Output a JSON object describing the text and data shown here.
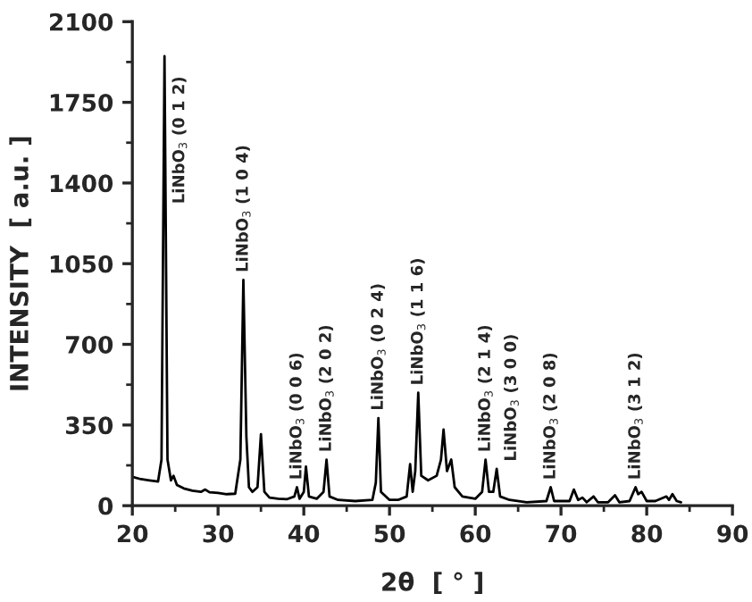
{
  "chart_data": {
    "type": "line",
    "xlabel": "2θ  [ ° ]",
    "ylabel": "INTENSITY  [ a.u. ]",
    "color": "#000000",
    "line_style": "solid",
    "x": [
      20,
      21,
      22,
      23,
      23.4,
      23.6,
      23.75,
      23.9,
      24.1,
      24.5,
      24.8,
      25.2,
      26,
      27,
      28,
      28.5,
      29,
      30,
      31,
      32,
      32.6,
      32.95,
      33.3,
      33.6,
      34,
      34.6,
      35.0,
      35.4,
      36,
      37,
      38,
      38.9,
      39.2,
      39.5,
      40.0,
      40.25,
      40.6,
      41.5,
      42.3,
      42.65,
      43,
      44,
      46,
      48,
      48.4,
      48.7,
      49,
      50,
      51,
      52,
      52.4,
      52.7,
      53.0,
      53.35,
      53.7,
      54.5,
      55.5,
      56.0,
      56.3,
      56.7,
      57.2,
      57.6,
      58.5,
      60,
      60.8,
      61.2,
      61.6,
      62.1,
      62.5,
      62.9,
      64,
      66,
      68.3,
      68.8,
      69.2,
      71,
      71.5,
      72,
      72.5,
      73,
      73.8,
      74.3,
      75.5,
      76.3,
      76.8,
      78,
      78.7,
      79.0,
      79.4,
      80,
      81,
      82.3,
      82.6,
      83.0,
      83.5,
      84
    ],
    "values": [
      125,
      115,
      110,
      105,
      200,
      1200,
      1950,
      1200,
      200,
      110,
      130,
      90,
      75,
      65,
      60,
      70,
      58,
      55,
      50,
      52,
      200,
      980,
      300,
      80,
      60,
      80,
      310,
      60,
      35,
      30,
      28,
      40,
      80,
      30,
      60,
      170,
      40,
      30,
      60,
      200,
      40,
      25,
      20,
      25,
      100,
      380,
      60,
      25,
      25,
      40,
      180,
      60,
      150,
      490,
      130,
      110,
      130,
      200,
      330,
      150,
      200,
      80,
      40,
      30,
      60,
      200,
      60,
      60,
      160,
      40,
      25,
      15,
      20,
      80,
      20,
      20,
      70,
      25,
      35,
      15,
      40,
      15,
      15,
      45,
      15,
      20,
      80,
      50,
      60,
      20,
      20,
      40,
      25,
      50,
      20,
      15
    ],
    "xlim": [
      20,
      90
    ],
    "ylim": [
      0,
      2100
    ],
    "xticks": [
      20,
      30,
      40,
      50,
      60,
      70,
      80,
      90
    ],
    "yticks": [
      0,
      350,
      700,
      1050,
      1400,
      1750,
      2100
    ],
    "annotations": [
      {
        "text": "LiNbO$_{3}$ (0 1 2)",
        "x": 23.75,
        "y": 1950
      },
      {
        "text": "LiNbO$_{3}$ (1 0 4)",
        "x": 32.95,
        "y": 980
      },
      {
        "text": "LiNbO$_{3}$ (0 0 6)",
        "x": 39.2,
        "y": 80
      },
      {
        "text": "LiNbO$_{3}$ (2 0 2)",
        "x": 42.65,
        "y": 200
      },
      {
        "text": "LiNbO$_{3}$ (0 2 4)",
        "x": 48.7,
        "y": 380
      },
      {
        "text": "LiNbO$_{3}$ (1 1 6)",
        "x": 53.35,
        "y": 490
      },
      {
        "text": "LiNbO$_{3}$ (2 1 4)",
        "x": 61.2,
        "y": 200
      },
      {
        "text": "LiNbO$_{3}$ (3 0 0)",
        "x": 62.5,
        "y": 160
      },
      {
        "text": "LiNbO$_{3}$ (2 0 8)",
        "x": 68.8,
        "y": 80
      },
      {
        "text": "LiNbO$_{3}$ (3 1 2)",
        "x": 78.7,
        "y": 80
      }
    ]
  }
}
